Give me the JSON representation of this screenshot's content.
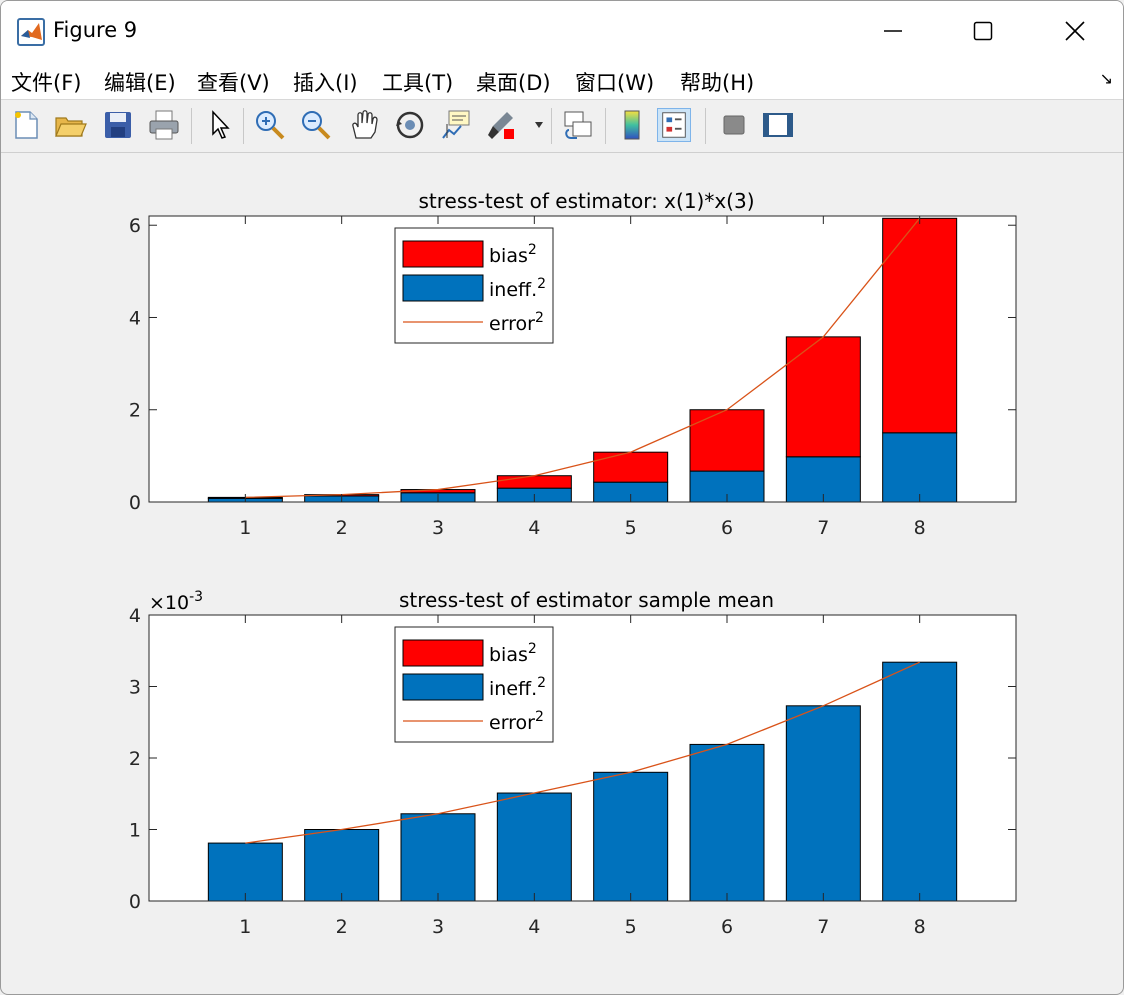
{
  "window": {
    "title": "Figure 9"
  },
  "menu": [
    "文件(F)",
    "编辑(E)",
    "查看(V)",
    "插入(I)",
    "工具(T)",
    "桌面(D)",
    "窗口(W)",
    "帮助(H)"
  ],
  "toolbar_icons": [
    "new-figure-icon",
    "open-file-icon",
    "save-icon",
    "print-icon",
    "select-pointer-icon",
    "zoom-in-icon",
    "zoom-out-icon",
    "pan-hand-icon",
    "rotate-3d-icon",
    "data-cursor-icon",
    "brush-icon",
    "brush-dropdown-icon",
    "link-plot-icon",
    "colorbar-icon",
    "legend-icon",
    "hide-plot-tools-icon",
    "show-plot-tools-icon"
  ],
  "colors": {
    "bias": "#ff0000",
    "ineff": "#0072bd",
    "error": "#d95319"
  },
  "chart_data": [
    {
      "type": "bar",
      "stacked": true,
      "title": "stress-test of estimator: x(1)*x(3)",
      "categories": [
        "1",
        "2",
        "3",
        "4",
        "5",
        "6",
        "7",
        "8"
      ],
      "series": [
        {
          "name": "ineff.",
          "values": [
            0.08,
            0.13,
            0.2,
            0.3,
            0.43,
            0.67,
            0.98,
            1.5
          ]
        },
        {
          "name": "bias",
          "values": [
            0.02,
            0.03,
            0.07,
            0.27,
            0.65,
            1.33,
            2.6,
            4.65
          ]
        }
      ],
      "line": {
        "name": "error",
        "values": [
          0.1,
          0.16,
          0.27,
          0.57,
          1.08,
          2.0,
          3.58,
          6.15
        ]
      },
      "legend": [
        {
          "label": "bias",
          "sup": "2"
        },
        {
          "label": "ineff.",
          "sup": "2"
        },
        {
          "label": "error",
          "sup": "2"
        }
      ],
      "ylim": [
        0,
        6.2
      ],
      "yticks": [
        "0",
        "2",
        "4",
        "6"
      ],
      "exponent": "",
      "legend_position": "top-center"
    },
    {
      "type": "bar",
      "stacked": true,
      "title": "stress-test of estimator sample mean",
      "categories": [
        "1",
        "2",
        "3",
        "4",
        "5",
        "6",
        "7",
        "8"
      ],
      "series": [
        {
          "name": "ineff.",
          "values": [
            0.81,
            1.0,
            1.22,
            1.51,
            1.8,
            2.19,
            2.73,
            3.34
          ]
        },
        {
          "name": "bias",
          "values": [
            0,
            0,
            0,
            0,
            0,
            0,
            0,
            0
          ]
        }
      ],
      "line": {
        "name": "error",
        "values": [
          0.81,
          1.0,
          1.22,
          1.51,
          1.8,
          2.19,
          2.73,
          3.34
        ]
      },
      "legend": [
        {
          "label": "bias",
          "sup": "2"
        },
        {
          "label": "ineff.",
          "sup": "2"
        },
        {
          "label": "error",
          "sup": "2"
        }
      ],
      "ylim": [
        0,
        4
      ],
      "yticks": [
        "0",
        "1",
        "2",
        "3",
        "4"
      ],
      "exponent": "-3",
      "exponent_base": "×10",
      "legend_position": "top-center"
    }
  ]
}
